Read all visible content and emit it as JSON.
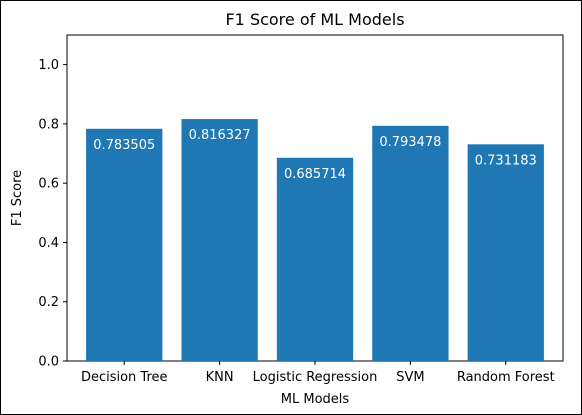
{
  "chart_data": {
    "type": "bar",
    "title": "F1 Score of ML Models",
    "xlabel": "ML Models",
    "ylabel": "F1 Score",
    "categories": [
      "Decision Tree",
      "KNN",
      "Logistic Regression",
      "SVM",
      "Random Forest"
    ],
    "values": [
      0.783505,
      0.816327,
      0.685714,
      0.793478,
      0.731183
    ],
    "data_labels": [
      "0.783505",
      "0.816327",
      "0.685714",
      "0.793478",
      "0.731183"
    ],
    "ylim": [
      0,
      1.1
    ],
    "yticks": [
      0.0,
      0.2,
      0.4,
      0.6,
      0.8,
      1.0
    ],
    "ytick_labels": [
      "0.0",
      "0.2",
      "0.4",
      "0.6",
      "0.8",
      "1.0"
    ],
    "grid": false,
    "bar_color": "#1f77b4",
    "label_color": "#ffffff"
  }
}
